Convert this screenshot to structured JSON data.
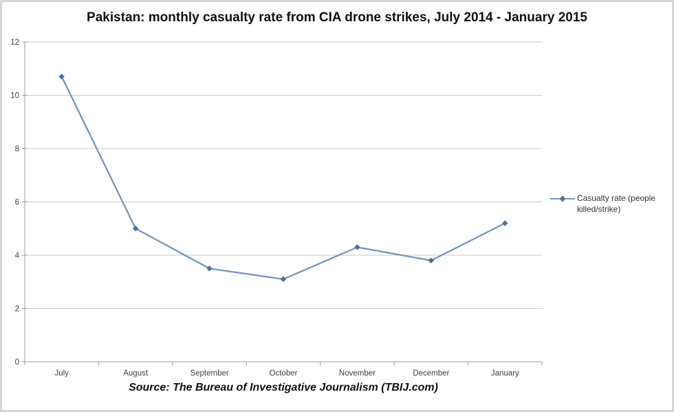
{
  "chart": {
    "title": "Pakistan: monthly casualty rate from CIA drone strikes, July 2014 - January 2015",
    "legend_label": "Casualty rate (people killed/strike)",
    "source": "Source: The Bureau of Investigative Journalism (TBIJ.com)"
  },
  "chart_data": {
    "type": "line",
    "title": "Pakistan: monthly casualty rate from CIA drone strikes, July 2014 - January 2015",
    "categories": [
      "July",
      "August",
      "September",
      "October",
      "November",
      "December",
      "January"
    ],
    "series": [
      {
        "name": "Casualty rate (people killed/strike)",
        "values": [
          10.7,
          5.0,
          3.5,
          3.1,
          4.3,
          3.8,
          5.2
        ]
      }
    ],
    "xlabel": "",
    "ylabel": "",
    "ylim": [
      0,
      12
    ],
    "ytick_step": 2,
    "grid": true,
    "legend_position": "right",
    "marker": "diamond",
    "annotation": "Source: The Bureau of Investigative Journalism (TBIJ.com)",
    "colors": {
      "line": "#7296be",
      "marker": "#4d7099",
      "grid": "#c9c9c9",
      "axis": "#9b9b9b",
      "tick_text": "#404040",
      "title_text": "#111111"
    }
  }
}
